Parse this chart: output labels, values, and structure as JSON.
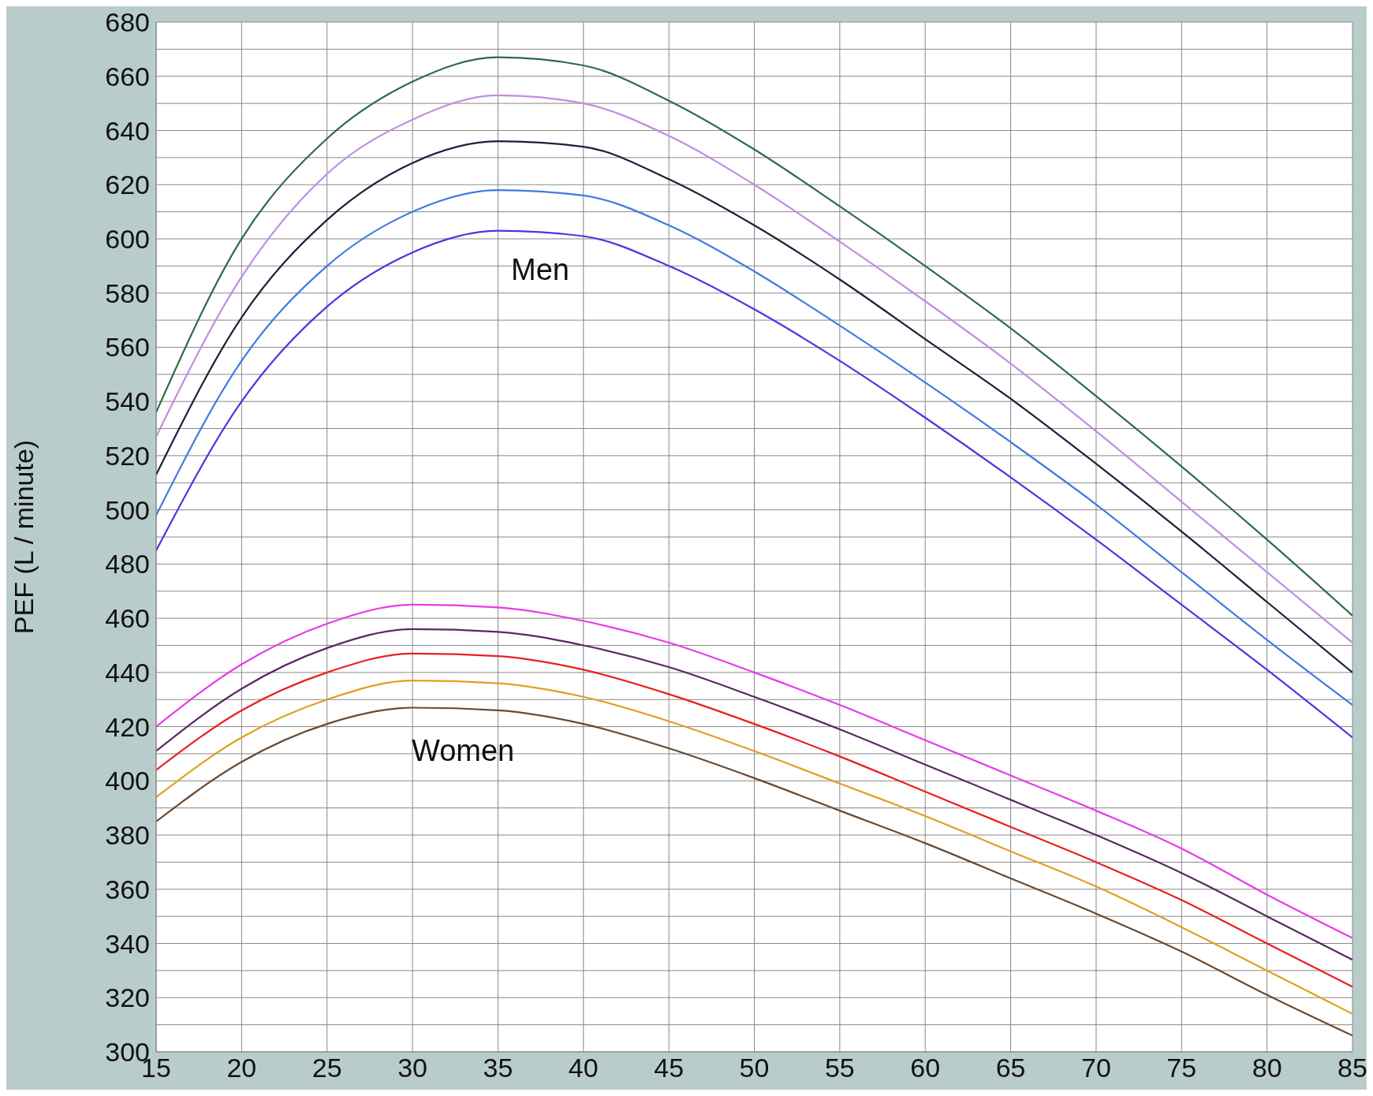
{
  "chart_data": {
    "type": "line",
    "ylabel": "PEF (L / minute)",
    "x": [
      15,
      20,
      25,
      30,
      35,
      40,
      45,
      50,
      55,
      60,
      65,
      70,
      75,
      80,
      85
    ],
    "xlim": [
      15,
      85
    ],
    "xticks": [
      15,
      20,
      25,
      30,
      35,
      40,
      45,
      50,
      55,
      60,
      65,
      70,
      75,
      80,
      85
    ],
    "ylim": [
      300,
      680
    ],
    "yticks": [
      300,
      {
        "value": 310,
        "label": null
      },
      320,
      {
        "value": 330,
        "label": null
      },
      340,
      {
        "value": 350,
        "label": null
      },
      360,
      {
        "value": 370,
        "label": null
      },
      380,
      {
        "value": 390,
        "label": null
      },
      400,
      {
        "value": 410,
        "label": null
      },
      420,
      {
        "value": 430,
        "label": null
      },
      440,
      {
        "value": 450,
        "label": null
      },
      460,
      {
        "value": 470,
        "label": null
      },
      480,
      {
        "value": 490,
        "label": null
      },
      500,
      {
        "value": 510,
        "label": null
      },
      520,
      {
        "value": 530,
        "label": null
      },
      540,
      {
        "value": 550,
        "label": null
      },
      560,
      {
        "value": 570,
        "label": null
      },
      580,
      {
        "value": 590,
        "label": null
      },
      600,
      {
        "value": 610,
        "label": null
      },
      620,
      {
        "value": 630,
        "label": null
      },
      640,
      {
        "value": 650,
        "label": null
      },
      660,
      {
        "value": 670,
        "label": null
      },
      680
    ],
    "grid": true,
    "marker": "none",
    "line_style": "solid",
    "annotations": [
      "Men",
      "Women"
    ],
    "series": [
      {
        "color": "#2f6b4a",
        "values": [
          536,
          600,
          637,
          658,
          667,
          664,
          651,
          633,
          612,
          590,
          567,
          542,
          516,
          489,
          461
        ]
      },
      {
        "color": "#c08ee0",
        "values": [
          527,
          586,
          624,
          644,
          653,
          650,
          638,
          620,
          599,
          577,
          554,
          529,
          503,
          477,
          451
        ]
      },
      {
        "color": "#1e1e3c",
        "values": [
          513,
          571,
          607,
          628,
          636,
          634,
          622,
          605,
          585,
          563,
          541,
          517,
          492,
          466,
          440
        ]
      },
      {
        "color": "#3f7be0",
        "values": [
          498,
          555,
          590,
          610,
          618,
          616,
          605,
          588,
          568,
          547,
          525,
          502,
          477,
          452,
          428
        ]
      },
      {
        "color": "#5a2ee0",
        "values": [
          485,
          540,
          575,
          595,
          603,
          601,
          590,
          574,
          555,
          534,
          512,
          489,
          465,
          441,
          416
        ]
      },
      {
        "color": "#e83ae8",
        "values": [
          420,
          443,
          458,
          465,
          464,
          459,
          451,
          440,
          428,
          415,
          402,
          389,
          375,
          358,
          342
        ]
      },
      {
        "color": "#5a2860",
        "values": [
          411,
          434,
          449,
          456,
          455,
          450,
          442,
          431,
          419,
          406,
          393,
          380,
          366,
          350,
          334
        ]
      },
      {
        "color": "#e82020",
        "values": [
          404,
          426,
          440,
          447,
          446,
          441,
          432,
          421,
          409,
          396,
          383,
          370,
          356,
          340,
          324
        ]
      },
      {
        "color": "#e0a020",
        "values": [
          394,
          416,
          430,
          437,
          436,
          431,
          422,
          411,
          399,
          387,
          374,
          361,
          346,
          330,
          314
        ]
      },
      {
        "color": "#6a4a30",
        "values": [
          385,
          407,
          421,
          427,
          426,
          421,
          412,
          401,
          389,
          377,
          364,
          351,
          337,
          321,
          306
        ]
      }
    ]
  }
}
